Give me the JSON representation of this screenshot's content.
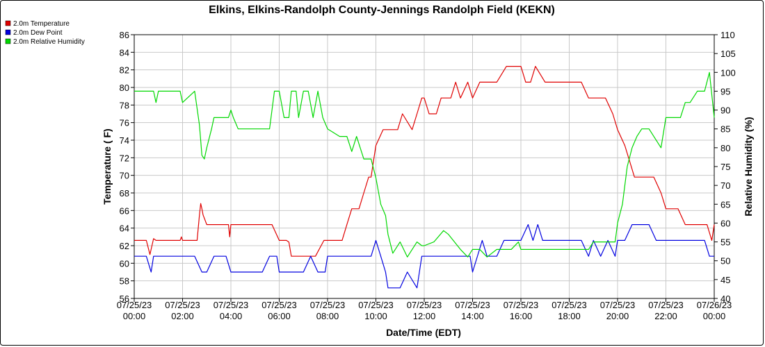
{
  "chart_data": {
    "type": "line",
    "title": "Elkins, Elkins-Randolph County-Jennings Randolph Field (KEKN)",
    "xlabel": "Date/Time (EDT)",
    "ylabel": "Temperature ( F)",
    "y2label": "Relative Humidity (%)",
    "ylim": [
      56,
      86
    ],
    "y2lim": [
      40,
      110
    ],
    "xlim": [
      0,
      24
    ],
    "x_ticks": [
      {
        "x": 0,
        "date": "07/25/23",
        "time": "00:00"
      },
      {
        "x": 2,
        "date": "07/25/23",
        "time": "02:00"
      },
      {
        "x": 4,
        "date": "07/25/23",
        "time": "04:00"
      },
      {
        "x": 6,
        "date": "07/25/23",
        "time": "06:00"
      },
      {
        "x": 8,
        "date": "07/25/23",
        "time": "08:00"
      },
      {
        "x": 10,
        "date": "07/25/23",
        "time": "10:00"
      },
      {
        "x": 12,
        "date": "07/25/23",
        "time": "12:00"
      },
      {
        "x": 14,
        "date": "07/25/23",
        "time": "14:00"
      },
      {
        "x": 16,
        "date": "07/25/23",
        "time": "16:00"
      },
      {
        "x": 18,
        "date": "07/25/23",
        "time": "18:00"
      },
      {
        "x": 20,
        "date": "07/25/23",
        "time": "20:00"
      },
      {
        "x": 22,
        "date": "07/25/23",
        "time": "22:00"
      },
      {
        "x": 24,
        "date": "07/26/23",
        "time": "00:00"
      }
    ],
    "y_ticks": [
      56,
      58,
      60,
      62,
      64,
      66,
      68,
      70,
      72,
      74,
      76,
      78,
      80,
      82,
      84,
      86
    ],
    "y2_ticks": [
      40,
      45,
      50,
      55,
      60,
      65,
      70,
      75,
      80,
      85,
      90,
      95,
      100,
      105,
      110
    ],
    "grid": true,
    "legend_position": "top-left",
    "series": [
      {
        "name": "2.0m Temperature",
        "color": "#e00000",
        "axis": "left",
        "x": [
          0,
          0.5,
          0.65,
          0.8,
          0.9,
          1.0,
          1.5,
          1.9,
          1.95,
          2.0,
          2.6,
          2.7,
          2.75,
          2.8,
          2.85,
          3.0,
          3.5,
          3.9,
          3.95,
          4.0,
          4.5,
          4.9,
          5.0,
          5.3,
          5.7,
          6.0,
          6.3,
          6.4,
          6.5,
          6.8,
          6.9,
          7.0,
          7.5,
          7.85,
          7.9,
          8.0,
          8.2,
          8.6,
          8.8,
          9.0,
          9.3,
          9.5,
          9.7,
          9.8,
          9.9,
          10.0,
          10.3,
          10.6,
          10.9,
          11.1,
          11.5,
          11.7,
          11.9,
          12.0,
          12.2,
          12.5,
          12.7,
          12.9,
          13.1,
          13.3,
          13.5,
          13.8,
          14.0,
          14.3,
          14.6,
          15.0,
          15.4,
          15.6,
          15.9,
          16.0,
          16.2,
          16.4,
          16.6,
          17.0,
          17.5,
          18.0,
          18.5,
          18.8,
          19.0,
          19.2,
          19.5,
          19.8,
          20.0,
          20.3,
          20.5,
          20.7,
          21.0,
          21.5,
          21.8,
          22.0,
          22.5,
          22.8,
          23.0,
          23.3,
          23.5,
          23.7,
          23.9,
          24.0
        ],
        "y": [
          62.6,
          62.6,
          61.0,
          62.8,
          62.6,
          62.6,
          62.6,
          62.6,
          63.0,
          62.6,
          62.6,
          65.5,
          66.8,
          66.2,
          65.5,
          64.4,
          64.4,
          64.4,
          63.0,
          64.4,
          64.4,
          64.4,
          64.4,
          64.4,
          64.4,
          62.6,
          62.6,
          62.4,
          60.8,
          60.8,
          60.8,
          60.8,
          60.8,
          62.6,
          62.6,
          62.6,
          62.6,
          62.6,
          64.4,
          66.2,
          66.2,
          68.0,
          69.8,
          69.8,
          71.6,
          73.4,
          75.2,
          75.2,
          75.2,
          77.0,
          75.2,
          77.0,
          78.8,
          78.8,
          77.0,
          77.0,
          78.8,
          78.8,
          78.8,
          80.6,
          78.8,
          80.6,
          78.8,
          80.6,
          80.6,
          80.6,
          82.4,
          82.4,
          82.4,
          82.4,
          80.6,
          80.6,
          82.4,
          80.6,
          80.6,
          80.6,
          80.6,
          78.8,
          78.8,
          78.8,
          78.8,
          77.0,
          75.2,
          73.4,
          71.6,
          69.8,
          69.8,
          69.8,
          68.0,
          66.2,
          66.2,
          64.4,
          64.4,
          64.4,
          64.4,
          64.4,
          62.6,
          64.4
        ]
      },
      {
        "name": "2.0m Dew Point",
        "color": "#0000e0",
        "axis": "left",
        "x": [
          0,
          0.5,
          0.7,
          0.8,
          1.0,
          1.5,
          1.9,
          2.0,
          2.5,
          2.8,
          3.0,
          3.3,
          3.6,
          3.8,
          4.0,
          4.5,
          5.0,
          5.3,
          5.6,
          5.9,
          6.0,
          6.5,
          7.0,
          7.3,
          7.6,
          7.9,
          8.0,
          8.5,
          9.0,
          9.5,
          9.8,
          10.0,
          10.2,
          10.4,
          10.5,
          10.7,
          11.0,
          11.3,
          11.7,
          11.9,
          12.0,
          12.4,
          12.8,
          13.0,
          13.3,
          13.6,
          13.9,
          14.0,
          14.2,
          14.4,
          14.6,
          14.8,
          15.0,
          15.3,
          15.6,
          15.9,
          16.0,
          16.3,
          16.5,
          16.7,
          16.9,
          17.2,
          17.6,
          18.0,
          18.5,
          18.8,
          19.0,
          19.3,
          19.6,
          19.9,
          20.0,
          20.3,
          20.6,
          21.0,
          21.3,
          21.6,
          22.0,
          22.5,
          22.8,
          23.0,
          23.3,
          23.6,
          23.8,
          24.0
        ],
        "y": [
          60.8,
          60.8,
          59.0,
          60.8,
          60.8,
          60.8,
          60.8,
          60.8,
          60.8,
          59.0,
          59.0,
          60.8,
          60.8,
          60.8,
          59.0,
          59.0,
          59.0,
          59.0,
          60.8,
          60.8,
          59.0,
          59.0,
          59.0,
          60.8,
          59.0,
          59.0,
          60.8,
          60.8,
          60.8,
          60.8,
          60.8,
          62.6,
          60.8,
          59.0,
          57.2,
          57.2,
          57.2,
          59.0,
          57.2,
          60.8,
          60.8,
          60.8,
          60.8,
          60.8,
          60.8,
          60.8,
          60.8,
          59.0,
          60.8,
          62.6,
          60.8,
          60.8,
          60.8,
          62.6,
          62.6,
          62.6,
          62.6,
          64.4,
          62.6,
          64.4,
          62.6,
          62.6,
          62.6,
          62.6,
          62.6,
          60.8,
          62.6,
          60.8,
          62.6,
          60.8,
          62.6,
          62.6,
          64.4,
          64.4,
          64.4,
          62.6,
          62.6,
          62.6,
          62.6,
          62.6,
          62.6,
          62.6,
          60.8,
          60.8
        ]
      },
      {
        "name": "2.0m Relative Humidity",
        "color": "#00d800",
        "axis": "right",
        "x": [
          0,
          0.5,
          0.8,
          0.9,
          1.0,
          1.5,
          1.9,
          2.0,
          2.5,
          2.7,
          2.8,
          2.9,
          3.0,
          3.2,
          3.3,
          3.5,
          3.9,
          4.0,
          4.1,
          4.3,
          5.0,
          5.3,
          5.6,
          5.8,
          6.0,
          6.2,
          6.4,
          6.5,
          6.7,
          6.8,
          7.0,
          7.2,
          7.4,
          7.6,
          7.8,
          8.0,
          8.5,
          8.8,
          9.0,
          9.2,
          9.5,
          9.8,
          10.0,
          10.2,
          10.4,
          10.5,
          10.7,
          11.0,
          11.3,
          11.7,
          11.9,
          12.0,
          12.4,
          12.8,
          13.0,
          13.5,
          13.8,
          14.0,
          14.3,
          14.6,
          15.0,
          15.3,
          15.6,
          15.9,
          16.0,
          16.3,
          16.6,
          17.0,
          17.5,
          18.0,
          18.5,
          18.8,
          19.0,
          19.3,
          19.6,
          19.9,
          20.0,
          20.2,
          20.4,
          20.6,
          20.8,
          21.0,
          21.3,
          21.5,
          21.8,
          22.0,
          22.3,
          22.6,
          22.8,
          23.0,
          23.3,
          23.6,
          23.8,
          24.0
        ],
        "y": [
          95,
          95,
          95,
          92,
          95,
          95,
          95,
          92,
          95,
          86,
          78,
          77,
          80,
          85,
          88,
          88,
          88,
          90,
          88,
          85,
          85,
          85,
          85,
          95,
          95,
          88,
          88,
          95,
          95,
          88,
          95,
          95,
          88,
          95,
          88,
          85,
          83,
          83,
          79,
          83,
          77,
          77,
          72,
          65,
          62,
          57,
          52,
          55,
          51,
          55,
          54,
          54,
          55,
          58,
          57,
          53,
          51,
          53,
          53,
          51,
          53,
          53,
          53,
          55,
          53,
          53,
          53,
          53,
          53,
          53,
          53,
          53,
          55,
          55,
          55,
          55,
          60,
          65,
          75,
          80,
          83,
          85,
          85,
          83,
          80,
          88,
          88,
          88,
          92,
          92,
          95,
          95,
          100,
          88
        ]
      }
    ]
  }
}
